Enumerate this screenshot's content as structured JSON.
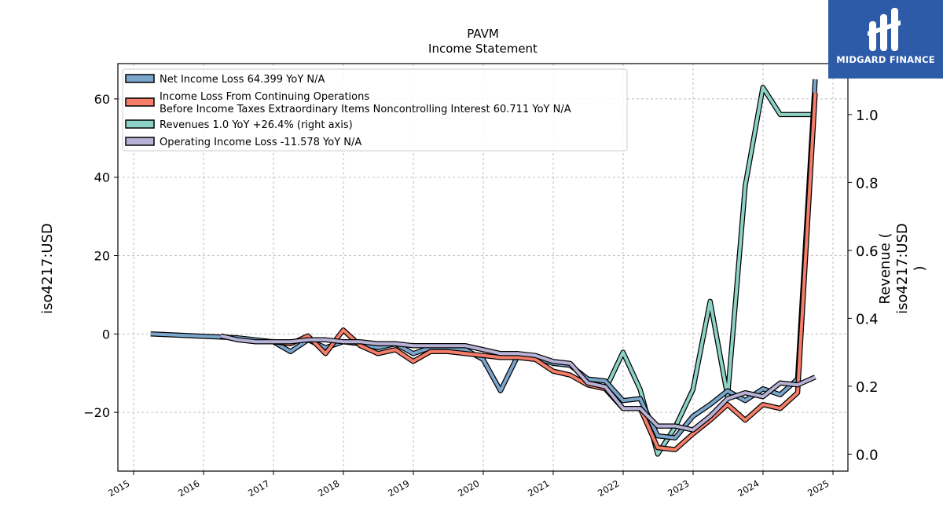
{
  "chart_data": {
    "type": "line",
    "title": "PAVM",
    "subtitle": "Income Statement",
    "ylabel": "iso4217:USD",
    "y2label": "Revenue ( iso4217:USD )",
    "ylim": [
      -35,
      69
    ],
    "y2lim": [
      -0.05,
      1.15
    ],
    "x_ticks": [
      "2015",
      "2016",
      "2017",
      "2018",
      "2019",
      "2020",
      "2021",
      "2022",
      "2023",
      "2024",
      "2025"
    ],
    "y_ticks": [
      -20,
      0,
      20,
      40,
      60
    ],
    "y2_ticks": [
      0.0,
      0.2,
      0.4,
      0.6,
      0.8,
      1.0
    ],
    "grid": true,
    "legend_position": "top-left",
    "series": [
      {
        "name": "Net Income Loss  64.399 YoY N/A",
        "color": "#7aa6cc",
        "axis": "left",
        "x": [
          "2015-03-31",
          "2016-03-31",
          "2016-06-30",
          "2016-09-30",
          "2016-12-31",
          "2017-03-31",
          "2017-06-30",
          "2017-09-30",
          "2017-12-31",
          "2018-03-31",
          "2018-06-30",
          "2018-09-30",
          "2018-12-31",
          "2019-03-31",
          "2019-06-30",
          "2019-09-30",
          "2019-12-31",
          "2020-03-31",
          "2020-06-30",
          "2020-09-30",
          "2020-12-31",
          "2021-03-31",
          "2021-06-30",
          "2021-09-30",
          "2021-12-31",
          "2022-03-31",
          "2022-06-30",
          "2022-09-30",
          "2022-12-31",
          "2023-03-31",
          "2023-06-30",
          "2023-09-30",
          "2023-12-31",
          "2024-03-31",
          "2024-06-30",
          "2024-09-30"
        ],
        "y": [
          0.0,
          -0.8,
          -1.0,
          -1.5,
          -2.0,
          -4.5,
          -1.5,
          -3.5,
          -2.0,
          -2.5,
          -3.5,
          -2.5,
          -5.0,
          -3.5,
          -3.5,
          -4.0,
          -6.5,
          -14.5,
          -5.5,
          -6.0,
          -7.5,
          -8.0,
          -11.5,
          -12.0,
          -17.0,
          -16.5,
          -26.0,
          -26.5,
          -21.0,
          -18.0,
          -14.5,
          -17.0,
          -14.0,
          -15.5,
          -11.5,
          65.0
        ]
      },
      {
        "name": "Income Loss From Continuing Operations Before Income Taxes Extraordinary Items Noncontrolling Interest  60.711 YoY N/A",
        "color": "#f47e6a",
        "axis": "left",
        "x": [
          "2016-12-31",
          "2017-03-31",
          "2017-06-30",
          "2017-09-30",
          "2017-12-31",
          "2018-03-31",
          "2018-06-30",
          "2018-09-30",
          "2018-12-31",
          "2019-03-31",
          "2019-06-30",
          "2019-09-30",
          "2019-12-31",
          "2020-03-31",
          "2020-06-30",
          "2020-09-30",
          "2020-12-31",
          "2021-03-31",
          "2021-06-30",
          "2021-09-30",
          "2021-12-31",
          "2022-03-31",
          "2022-06-30",
          "2022-09-30",
          "2022-12-31",
          "2023-03-31",
          "2023-06-30",
          "2023-09-30",
          "2023-12-31",
          "2024-03-31",
          "2024-06-30",
          "2024-09-30"
        ],
        "y": [
          -2.0,
          -2.5,
          -0.5,
          -5.0,
          1.0,
          -3.0,
          -5.0,
          -4.0,
          -7.0,
          -4.5,
          -4.5,
          -5.0,
          -5.5,
          -6.0,
          -6.0,
          -6.5,
          -9.5,
          -10.5,
          -13.0,
          -14.0,
          -19.0,
          -19.0,
          -29.0,
          -29.5,
          -25.5,
          -22.0,
          -18.0,
          -22.0,
          -18.0,
          -19.0,
          -15.0,
          61.5
        ]
      },
      {
        "name": "Revenues  1.0 YoY +26.4% (right axis)",
        "color": "#8dd3c5",
        "axis": "right",
        "x": [
          "2021-09-30",
          "2021-12-31",
          "2022-03-31",
          "2022-06-30",
          "2022-09-30",
          "2022-12-31",
          "2023-03-31",
          "2023-06-30",
          "2023-09-30",
          "2023-12-31",
          "2024-03-31",
          "2024-06-30",
          "2024-09-30"
        ],
        "y": [
          0.19,
          0.3,
          0.19,
          0.0,
          0.08,
          0.19,
          0.45,
          0.17,
          0.79,
          1.08,
          1.0,
          1.0,
          1.0
        ]
      },
      {
        "name": "Operating Income Loss  -11.578 YoY N/A",
        "color": "#b7b2d6",
        "axis": "left",
        "x": [
          "2016-03-31",
          "2016-06-30",
          "2016-09-30",
          "2016-12-31",
          "2017-03-31",
          "2017-06-30",
          "2017-09-30",
          "2017-12-31",
          "2018-03-31",
          "2018-06-30",
          "2018-09-30",
          "2018-12-31",
          "2019-03-31",
          "2019-06-30",
          "2019-09-30",
          "2019-12-31",
          "2020-03-31",
          "2020-06-30",
          "2020-09-30",
          "2020-12-31",
          "2021-03-31",
          "2021-06-30",
          "2021-09-30",
          "2021-12-31",
          "2022-03-31",
          "2022-06-30",
          "2022-09-30",
          "2022-12-31",
          "2023-03-31",
          "2023-06-30",
          "2023-09-30",
          "2023-12-31",
          "2024-03-31",
          "2024-06-30",
          "2024-09-30"
        ],
        "y": [
          -0.5,
          -1.5,
          -2.0,
          -2.0,
          -2.0,
          -1.5,
          -1.5,
          -2.0,
          -2.0,
          -2.5,
          -2.5,
          -3.0,
          -3.0,
          -3.0,
          -3.0,
          -4.0,
          -5.0,
          -5.0,
          -5.5,
          -7.0,
          -7.5,
          -12.5,
          -13.5,
          -19.0,
          -19.0,
          -23.5,
          -23.5,
          -24.5,
          -21.0,
          -16.5,
          -15.0,
          -16.0,
          -12.5,
          -13.0,
          -11.0
        ]
      }
    ]
  },
  "logo": {
    "text": "MIDGARD FINANCE",
    "background": "#2d5ba8"
  }
}
